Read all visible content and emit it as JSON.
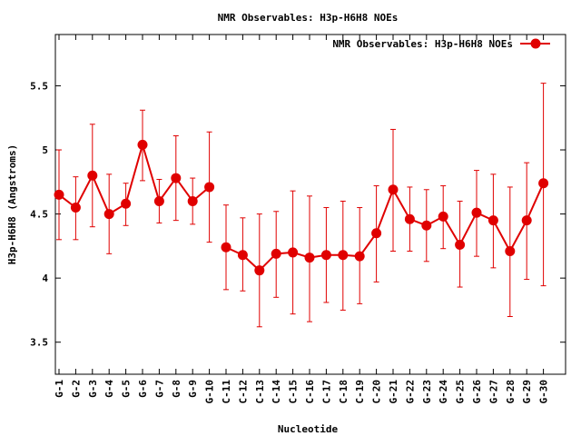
{
  "chart_data": {
    "type": "line",
    "title": "NMR Observables: H3p-H6H8 NOEs",
    "xlabel": "Nucleotide",
    "ylabel": "H3p-H6H8 (Angstroms)",
    "ylim": [
      3.25,
      5.9
    ],
    "yticks": [
      "3.5",
      "4",
      "4.5",
      "5",
      "5.5"
    ],
    "grid": false,
    "legend": {
      "position": "top-right",
      "label": "NMR Observables: H3p-H6H8 NOEs"
    },
    "series_color": "#e00000",
    "categories": [
      "G-1",
      "G-2",
      "G-3",
      "G-4",
      "G-5",
      "G-6",
      "G-7",
      "G-8",
      "G-9",
      "G-10",
      "C-11",
      "C-12",
      "C-13",
      "C-14",
      "C-15",
      "C-16",
      "C-17",
      "C-18",
      "C-19",
      "C-20",
      "G-21",
      "G-22",
      "G-23",
      "G-24",
      "G-25",
      "G-26",
      "G-27",
      "G-28",
      "G-29",
      "G-30"
    ],
    "segments": [
      [
        1,
        10
      ],
      [
        11,
        30
      ]
    ],
    "values": [
      4.65,
      4.55,
      4.8,
      4.5,
      4.58,
      5.04,
      4.6,
      4.78,
      4.6,
      4.71,
      4.24,
      4.18,
      4.06,
      4.19,
      4.2,
      4.16,
      4.18,
      4.18,
      4.17,
      4.35,
      4.69,
      4.46,
      4.41,
      4.48,
      4.26,
      4.51,
      4.45,
      4.21,
      4.45,
      4.74
    ],
    "err_low": [
      4.3,
      4.3,
      4.4,
      4.19,
      4.41,
      4.76,
      4.43,
      4.45,
      4.42,
      4.28,
      3.91,
      3.9,
      3.62,
      3.85,
      3.72,
      3.66,
      3.81,
      3.75,
      3.8,
      3.97,
      4.21,
      4.21,
      4.13,
      4.23,
      3.93,
      4.17,
      4.08,
      3.7,
      3.99,
      3.94
    ],
    "err_high": [
      5.0,
      4.79,
      5.2,
      4.81,
      4.74,
      5.31,
      4.77,
      5.11,
      4.78,
      5.14,
      4.57,
      4.47,
      4.5,
      4.52,
      4.68,
      4.64,
      4.55,
      4.6,
      4.55,
      4.72,
      5.16,
      4.71,
      4.69,
      4.72,
      4.6,
      4.84,
      4.81,
      4.71,
      4.9,
      5.52
    ]
  }
}
